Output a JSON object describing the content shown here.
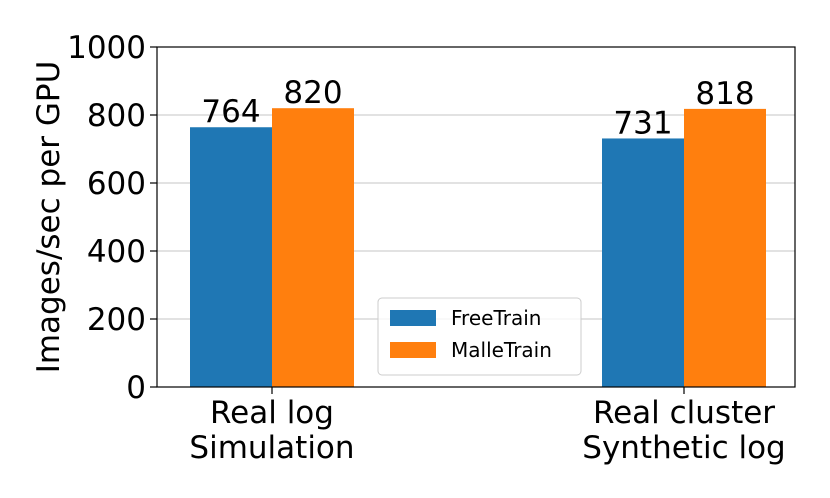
{
  "chart_data": {
    "type": "bar",
    "categories": [
      "Real log\nSimulation",
      "Real cluster\nSynthetic log"
    ],
    "series": [
      {
        "name": "FreeTrain",
        "values": [
          764,
          731
        ],
        "color": "#1f77b4"
      },
      {
        "name": "MalleTrain",
        "values": [
          820,
          818
        ],
        "color": "#ff7f0e"
      }
    ],
    "ylabel": "Images/sec per GPU",
    "ylim": [
      0,
      1000
    ],
    "yticks": [
      0,
      200,
      400,
      600,
      800,
      1000
    ],
    "grid": "horizontal",
    "legend_position": "lower center"
  }
}
